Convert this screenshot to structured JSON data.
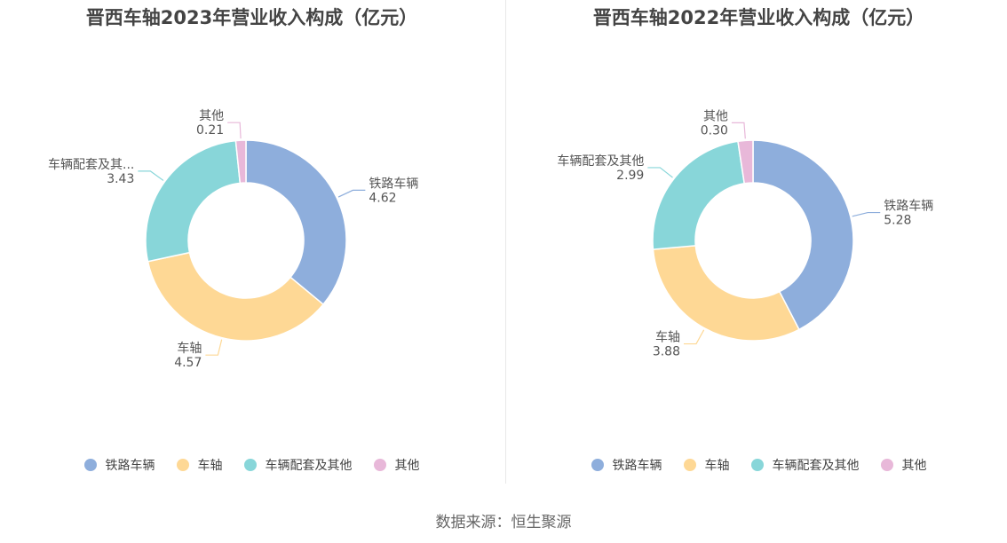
{
  "source_label": "数据来源：恒生聚源",
  "chart_data": [
    {
      "type": "pie",
      "title": "晋西车轴2023年营业收入构成（亿元）",
      "categories": [
        "铁路车辆",
        "车轴",
        "车辆配套及其他",
        "其他"
      ],
      "display_names": [
        "铁路车辆",
        "车轴",
        "车辆配套及其...",
        "其他"
      ],
      "values": [
        4.62,
        4.57,
        3.43,
        0.21
      ],
      "colors": [
        "#8eaedc",
        "#fed895",
        "#88d6d9",
        "#e8b8d9"
      ],
      "donut": true,
      "legend_position": "bottom"
    },
    {
      "type": "pie",
      "title": "晋西车轴2022年营业收入构成（亿元）",
      "categories": [
        "铁路车辆",
        "车轴",
        "车辆配套及其他",
        "其他"
      ],
      "display_names": [
        "铁路车辆",
        "车轴",
        "车辆配套及其他",
        "其他"
      ],
      "values": [
        5.28,
        3.88,
        2.99,
        0.3
      ],
      "colors": [
        "#8eaedc",
        "#fed895",
        "#88d6d9",
        "#e8b8d9"
      ],
      "donut": true,
      "legend_position": "bottom"
    }
  ]
}
